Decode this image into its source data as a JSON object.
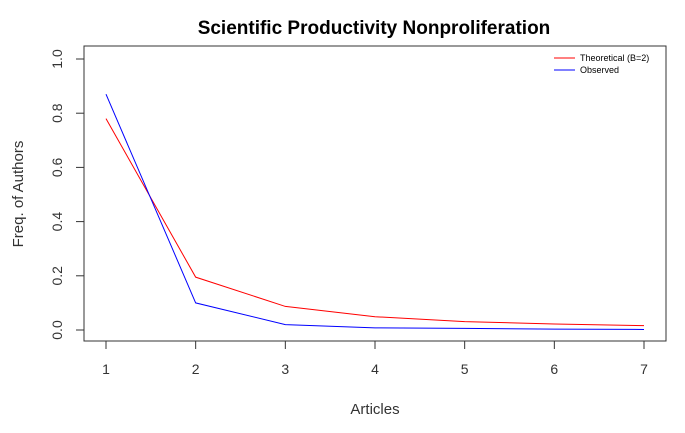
{
  "chart_data": {
    "type": "line",
    "title": "Scientific Productivity Nonproliferation",
    "xlabel": "Articles",
    "ylabel": "Freq. of Authors",
    "x": [
      1,
      2,
      3,
      4,
      5,
      6,
      7
    ],
    "xlim": [
      1,
      7
    ],
    "ylim": [
      0,
      1
    ],
    "x_ticks": [
      "1",
      "2",
      "3",
      "4",
      "5",
      "6",
      "7"
    ],
    "y_ticks": [
      "0.0",
      "0.2",
      "0.4",
      "0.6",
      "0.8",
      "1.0"
    ],
    "grid": false,
    "legend_position": "top-right",
    "series": [
      {
        "name": "Theoretical (B=2)",
        "color": "#ff0000",
        "values": [
          0.78,
          0.195,
          0.087,
          0.049,
          0.031,
          0.022,
          0.016
        ]
      },
      {
        "name": "Observed",
        "color": "#0000ff",
        "values": [
          0.87,
          0.1,
          0.02,
          0.008,
          0.006,
          0.003,
          0.002
        ]
      }
    ]
  }
}
